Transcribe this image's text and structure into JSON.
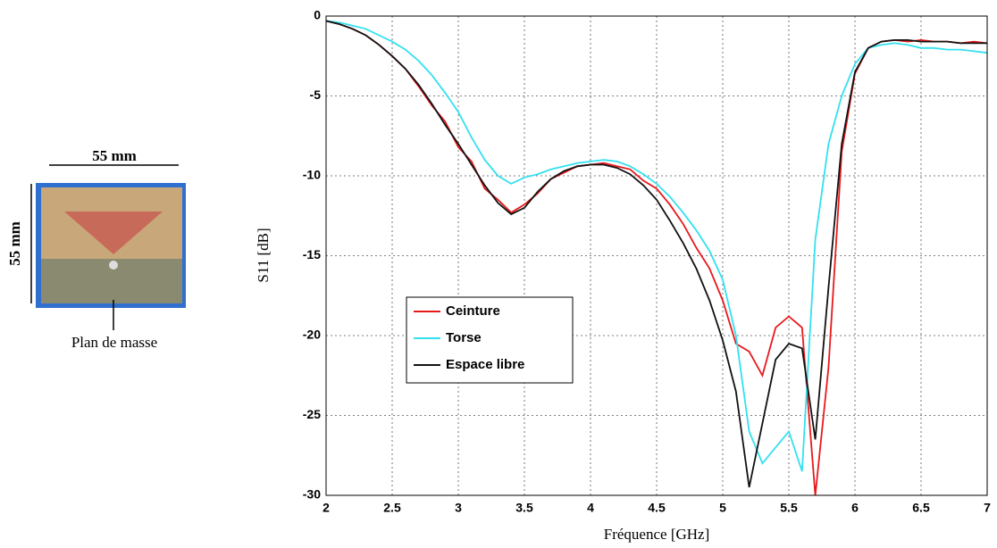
{
  "figure": {
    "width_label": "55 mm",
    "height_label": "55 mm",
    "caption": "Plan de masse"
  },
  "chart_data": {
    "type": "line",
    "xlabel": "Fréquence [GHz]",
    "ylabel": "S11 [dB]",
    "xlim": [
      2,
      7
    ],
    "ylim": [
      -30,
      0
    ],
    "xticks": [
      2,
      2.5,
      3,
      3.5,
      4,
      4.5,
      5,
      5.5,
      6,
      6.5,
      7
    ],
    "yticks": [
      -30,
      -25,
      -20,
      -15,
      -10,
      -5,
      0
    ],
    "grid": true,
    "legend": "center-left",
    "x": [
      2,
      2.1,
      2.2,
      2.3,
      2.4,
      2.5,
      2.6,
      2.7,
      2.8,
      2.9,
      3,
      3.1,
      3.2,
      3.3,
      3.4,
      3.5,
      3.6,
      3.7,
      3.8,
      3.9,
      4,
      4.1,
      4.2,
      4.3,
      4.4,
      4.5,
      4.6,
      4.7,
      4.8,
      4.9,
      5,
      5.1,
      5.2,
      5.3,
      5.4,
      5.5,
      5.6,
      5.7,
      5.8,
      5.9,
      6,
      6.1,
      6.2,
      6.3,
      6.4,
      6.5,
      6.6,
      6.7,
      6.8,
      6.9,
      7
    ],
    "series": [
      {
        "name": "Ceinture",
        "color": "#e8191c",
        "values": [
          -0.3,
          -0.5,
          -0.8,
          -1.2,
          -1.8,
          -2.5,
          -3.3,
          -4.4,
          -5.6,
          -6.6,
          -8.2,
          -9.1,
          -10.8,
          -11.5,
          -12.3,
          -11.8,
          -11.1,
          -10.2,
          -9.8,
          -9.4,
          -9.3,
          -9.2,
          -9.4,
          -9.6,
          -10.3,
          -10.8,
          -11.8,
          -13.0,
          -14.5,
          -15.8,
          -17.8,
          -20.5,
          -21.0,
          -22.5,
          -19.5,
          -18.8,
          -19.5,
          -30,
          -22.0,
          -8.5,
          -3.6,
          -2.0,
          -1.6,
          -1.5,
          -1.6,
          -1.5,
          -1.6,
          -1.6,
          -1.7,
          -1.6,
          -1.7
        ]
      },
      {
        "name": "Torse",
        "color": "#33e0f0",
        "values": [
          -0.3,
          -0.4,
          -0.6,
          -0.8,
          -1.2,
          -1.6,
          -2.1,
          -2.8,
          -3.7,
          -4.8,
          -6.0,
          -7.6,
          -9.0,
          -10.0,
          -10.5,
          -10.1,
          -9.9,
          -9.6,
          -9.4,
          -9.2,
          -9.1,
          -9.0,
          -9.1,
          -9.4,
          -9.9,
          -10.5,
          -11.3,
          -12.3,
          -13.4,
          -14.7,
          -16.5,
          -20.0,
          -26.0,
          -28.0,
          -27.0,
          -26.0,
          -28.5,
          -14.0,
          -8.0,
          -5.0,
          -3.0,
          -2.0,
          -1.8,
          -1.7,
          -1.8,
          -2.0,
          -2.0,
          -2.1,
          -2.1,
          -2.2,
          -2.3
        ]
      },
      {
        "name": "Espace libre",
        "color": "#111111",
        "values": [
          -0.3,
          -0.5,
          -0.8,
          -1.2,
          -1.8,
          -2.5,
          -3.3,
          -4.3,
          -5.5,
          -6.8,
          -8.0,
          -9.3,
          -10.6,
          -11.7,
          -12.4,
          -12.0,
          -11.0,
          -10.2,
          -9.7,
          -9.4,
          -9.3,
          -9.3,
          -9.5,
          -9.9,
          -10.6,
          -11.5,
          -12.8,
          -14.2,
          -15.8,
          -17.8,
          -20.3,
          -23.5,
          -29.5,
          -25.5,
          -21.5,
          -20.5,
          -20.8,
          -26.5,
          -17.0,
          -8.0,
          -3.5,
          -2.0,
          -1.6,
          -1.5,
          -1.5,
          -1.6,
          -1.6,
          -1.6,
          -1.7,
          -1.7,
          -1.7
        ]
      }
    ]
  }
}
